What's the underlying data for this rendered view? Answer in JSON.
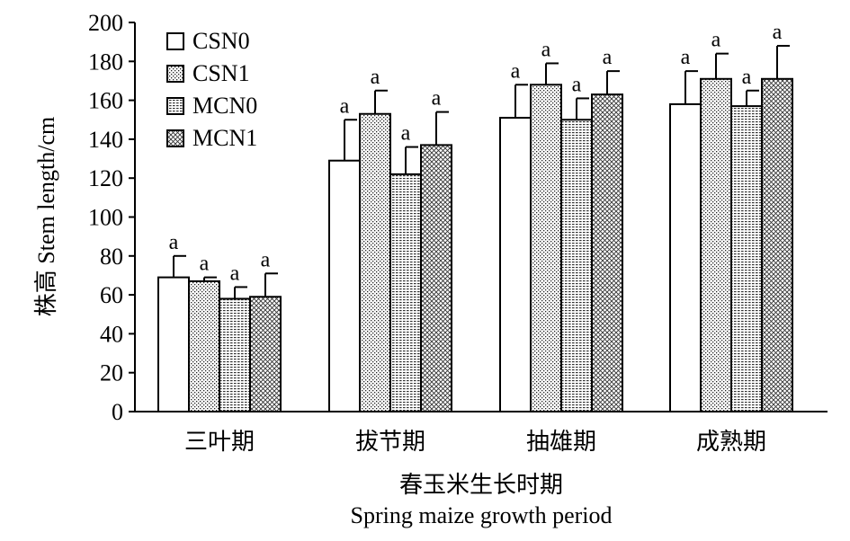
{
  "chart_data": {
    "type": "bar",
    "ylabel": "株高 Stem length/cm",
    "xlabel_cn": "春玉米生长时期",
    "xlabel_en": "Spring maize growth period",
    "ylim": [
      0,
      200
    ],
    "yticks": [
      0,
      20,
      40,
      60,
      80,
      100,
      120,
      140,
      160,
      180,
      200
    ],
    "categories": [
      "三叶期",
      "拔节期",
      "抽雄期",
      "成熟期"
    ],
    "series": [
      {
        "name": "CSN0",
        "values": [
          69,
          129,
          151,
          158
        ],
        "errors": [
          11,
          21,
          17,
          17
        ],
        "letters": [
          "a",
          "a",
          "a",
          "a"
        ],
        "pattern": "white"
      },
      {
        "name": "CSN1",
        "values": [
          67,
          153,
          168,
          171
        ],
        "errors": [
          2,
          12,
          11,
          13
        ],
        "letters": [
          "a",
          "a",
          "a",
          "a"
        ],
        "pattern": "dots"
      },
      {
        "name": "MCN0",
        "values": [
          58,
          122,
          150,
          157
        ],
        "errors": [
          6,
          14,
          11,
          8
        ],
        "letters": [
          "a",
          "a",
          "a",
          "a"
        ],
        "pattern": "hlines"
      },
      {
        "name": "MCN1",
        "values": [
          59,
          137,
          163,
          171
        ],
        "errors": [
          12,
          17,
          12,
          17
        ],
        "letters": [
          "a",
          "a",
          "a",
          "a"
        ],
        "pattern": "crosshatch"
      }
    ],
    "legend_position": "top-left",
    "grid": false
  }
}
